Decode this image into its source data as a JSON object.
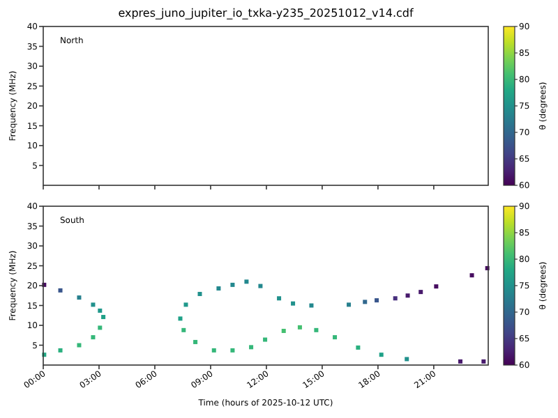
{
  "chart_data": [
    {
      "type": "scatter",
      "title": "expres_juno_jupiter_io_txka-y235_20251012_v14.cdf",
      "ylabel": "Frequency (MHz)",
      "clabel": "θ (degrees)",
      "annotations": [
        "North"
      ],
      "xlim": [
        0,
        23.93
      ],
      "xticks": [
        {
          "value": 0,
          "label": null
        },
        {
          "value": 3,
          "label": null
        },
        {
          "value": 6,
          "label": null
        },
        {
          "value": 9,
          "label": null
        },
        {
          "value": 12,
          "label": null
        },
        {
          "value": 15,
          "label": null
        },
        {
          "value": 18,
          "label": null
        },
        {
          "value": 21,
          "label": null
        }
      ],
      "ylim": [
        0,
        40
      ],
      "yticks": [
        5,
        10,
        15,
        20,
        25,
        30,
        35,
        40
      ],
      "clim": [
        60,
        90
      ],
      "cticks": [
        60,
        65,
        70,
        75,
        80,
        85,
        90
      ],
      "tick_labels": "y",
      "grid": false
    },
    {
      "type": "scatter",
      "xlabel": "Time (hours of 2025-10-12 UTC)",
      "ylabel": "Frequency (MHz)",
      "clabel": "θ (degrees)",
      "annotations": [
        "South"
      ],
      "x": [
        0.05,
        0.92,
        1.93,
        2.68,
        3.05,
        3.23,
        3.05,
        2.68,
        1.93,
        0.92,
        0.05,
        7.37,
        7.67,
        8.42,
        9.43,
        10.18,
        10.93,
        11.68,
        12.68,
        13.43,
        14.42,
        16.43,
        17.3,
        17.93,
        18.93,
        19.6,
        20.3,
        21.13,
        23.05,
        23.88,
        7.55,
        8.18,
        9.18,
        10.18,
        11.18,
        11.93,
        12.93,
        13.8,
        14.68,
        15.68,
        16.93,
        18.18,
        19.55,
        22.43,
        23.68
      ],
      "values": [
        20.2,
        18.8,
        17,
        15.2,
        13.7,
        12.1,
        9.4,
        7,
        5,
        3.7,
        2.6,
        11.7,
        15.2,
        17.9,
        19.3,
        20.2,
        21,
        19.9,
        16.8,
        15.5,
        15,
        15.2,
        15.9,
        16.3,
        16.8,
        17.5,
        18.4,
        19.8,
        22.6,
        24.4,
        8.8,
        5.8,
        3.7,
        3.7,
        4.5,
        6.4,
        8.6,
        9.5,
        8.8,
        7,
        4.4,
        2.6,
        1.5,
        0.9,
        0.9
      ],
      "cvalues": [
        61,
        68,
        73,
        75,
        76,
        77,
        80,
        80,
        80,
        79,
        78,
        77,
        76,
        75,
        74,
        74,
        74,
        74,
        75,
        75,
        74,
        73,
        70,
        68,
        64,
        62,
        62,
        61,
        61,
        61,
        80,
        80,
        80,
        80,
        80,
        80,
        81,
        81,
        80,
        80,
        79,
        77,
        75,
        62,
        62
      ],
      "marker": "square",
      "xlim": [
        0,
        23.93
      ],
      "xticks": [
        {
          "value": 0,
          "label": "00:00"
        },
        {
          "value": 3,
          "label": "03:00"
        },
        {
          "value": 6,
          "label": "06:00"
        },
        {
          "value": 9,
          "label": "09:00"
        },
        {
          "value": 12,
          "label": "12:00"
        },
        {
          "value": 15,
          "label": "15:00"
        },
        {
          "value": 18,
          "label": "18:00"
        },
        {
          "value": 21,
          "label": "21:00"
        }
      ],
      "ylim": [
        0,
        40
      ],
      "yticks": [
        5,
        10,
        15,
        20,
        25,
        30,
        35,
        40
      ],
      "clim": [
        60,
        90
      ],
      "cticks": [
        60,
        65,
        70,
        75,
        80,
        85,
        90
      ],
      "grid": false
    }
  ]
}
